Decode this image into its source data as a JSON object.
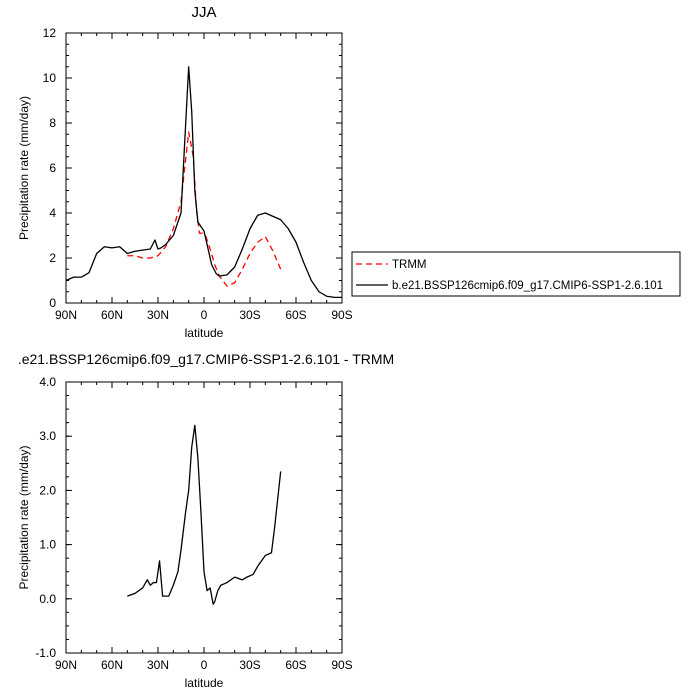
{
  "chart_data": [
    {
      "type": "line",
      "title": "JJA",
      "xlabel": "latitude",
      "ylabel": "Precipitation rate (mm/day)",
      "xlim": [
        90,
        -90
      ],
      "ylim": [
        0,
        12
      ],
      "xticks": [
        90,
        60,
        30,
        0,
        -30,
        -60,
        -90
      ],
      "xtick_labels": [
        "90N",
        "60N",
        "30N",
        "0",
        "30S",
        "60S",
        "90S"
      ],
      "yticks": [
        0,
        2,
        4,
        6,
        8,
        10,
        12
      ],
      "ytick_labels": [
        "0",
        "2",
        "4",
        "6",
        "8",
        "10",
        "12"
      ],
      "legend_position": "right",
      "series": [
        {
          "name": "TRMM",
          "color": "#ff0000",
          "dash": "dashed",
          "x": [
            50,
            45,
            40,
            35,
            30,
            25,
            20,
            15,
            10,
            7,
            5,
            3,
            1,
            -1,
            -4,
            -7,
            -10,
            -15,
            -20,
            -25,
            -30,
            -35,
            -40,
            -45,
            -50
          ],
          "y": [
            2.1,
            2.1,
            2.0,
            2.0,
            2.1,
            2.5,
            3.3,
            4.5,
            7.6,
            6.5,
            4.2,
            3.1,
            3.1,
            3.0,
            2.4,
            1.7,
            1.2,
            0.75,
            0.9,
            1.5,
            2.2,
            2.7,
            2.95,
            2.3,
            1.5
          ]
        },
        {
          "name": "b.e21.BSSP126cmip6.f09_g17.CMIP6-SSP1-2.6.101",
          "color": "#000000",
          "dash": "solid",
          "x": [
            90,
            85,
            80,
            75,
            70,
            65,
            60,
            55,
            50,
            45,
            40,
            35,
            32,
            30,
            28,
            25,
            20,
            15,
            10,
            8,
            6,
            4,
            2,
            0,
            -2,
            -5,
            -8,
            -10,
            -15,
            -20,
            -25,
            -30,
            -35,
            -40,
            -45,
            -50,
            -55,
            -60,
            -65,
            -70,
            -75,
            -80,
            -85,
            -90
          ],
          "y": [
            1.0,
            1.15,
            1.15,
            1.35,
            2.2,
            2.5,
            2.45,
            2.5,
            2.2,
            2.3,
            2.35,
            2.4,
            2.8,
            2.4,
            2.45,
            2.6,
            3.0,
            4.0,
            10.5,
            8.5,
            5.0,
            3.6,
            3.4,
            3.2,
            2.6,
            1.7,
            1.3,
            1.2,
            1.25,
            1.6,
            2.4,
            3.3,
            3.9,
            4.0,
            3.85,
            3.7,
            3.3,
            2.7,
            1.8,
            1.0,
            0.5,
            0.3,
            0.25,
            0.25
          ]
        }
      ]
    },
    {
      "type": "line",
      "title": ".e21.BSSP126cmip6.f09_g17.CMIP6-SSP1-2.6.101 - TRMM",
      "xlabel": "latitude",
      "ylabel": "Precipitation rate (mm/day)",
      "xlim": [
        90,
        -90
      ],
      "ylim": [
        -1,
        4
      ],
      "xticks": [
        90,
        60,
        30,
        0,
        -30,
        -60,
        -90
      ],
      "xtick_labels": [
        "90N",
        "60N",
        "30N",
        "0",
        "30S",
        "60S",
        "90S"
      ],
      "yticks": [
        -1,
        0,
        1,
        2,
        3,
        4
      ],
      "ytick_labels": [
        "-1.0",
        "0.0",
        "1.0",
        "2.0",
        "3.0",
        "4.0"
      ],
      "series": [
        {
          "color": "#000000",
          "dash": "solid",
          "x": [
            50,
            45,
            40,
            37,
            35,
            33,
            31,
            29,
            27,
            25,
            23,
            20,
            17,
            15,
            12,
            10,
            8,
            6,
            4,
            2,
            0,
            -2,
            -4,
            -6,
            -7,
            -9,
            -11,
            -15,
            -20,
            -25,
            -28,
            -32,
            -35,
            -40,
            -44,
            -46,
            -50
          ],
          "y": [
            0.05,
            0.1,
            0.2,
            0.35,
            0.25,
            0.3,
            0.3,
            0.7,
            0.05,
            0.05,
            0.05,
            0.25,
            0.5,
            0.9,
            1.6,
            2.0,
            2.8,
            3.2,
            2.6,
            1.6,
            0.5,
            0.15,
            0.2,
            -0.1,
            -0.05,
            0.15,
            0.25,
            0.3,
            0.4,
            0.35,
            0.4,
            0.45,
            0.6,
            0.8,
            0.85,
            1.3,
            2.35
          ]
        }
      ]
    }
  ]
}
